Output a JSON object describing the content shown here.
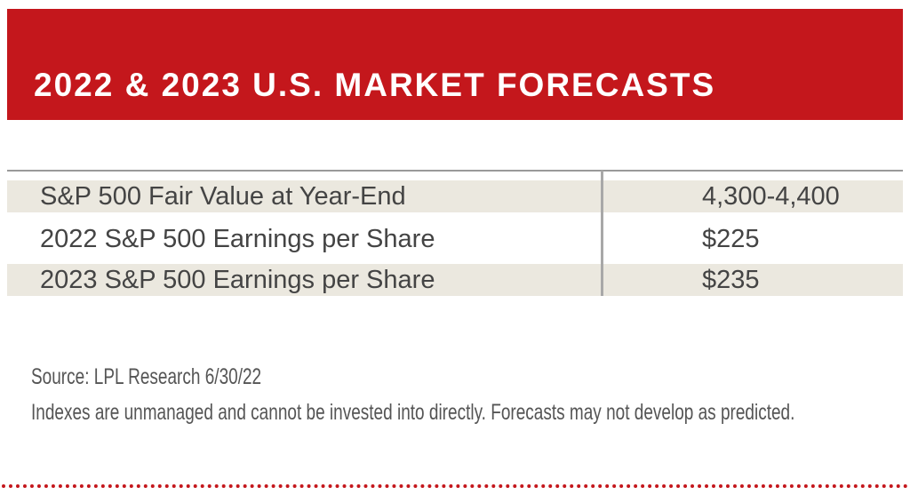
{
  "header": {
    "title": "2022 & 2023 U.S. MARKET FORECASTS"
  },
  "table": {
    "rows": [
      [
        "S&P 500 Fair Value at Year-End",
        "4,300-4,400"
      ],
      [
        "2022 S&P 500 Earnings per Share",
        "$225"
      ],
      [
        "2023 S&P 500 Earnings per Share",
        "$235"
      ]
    ]
  },
  "footnotes": {
    "source": "Source: LPL Research 6/30/22",
    "disclaimer": "Indexes are unmanaged and cannot be invested into directly. Forecasts may not develop as predicted."
  }
}
